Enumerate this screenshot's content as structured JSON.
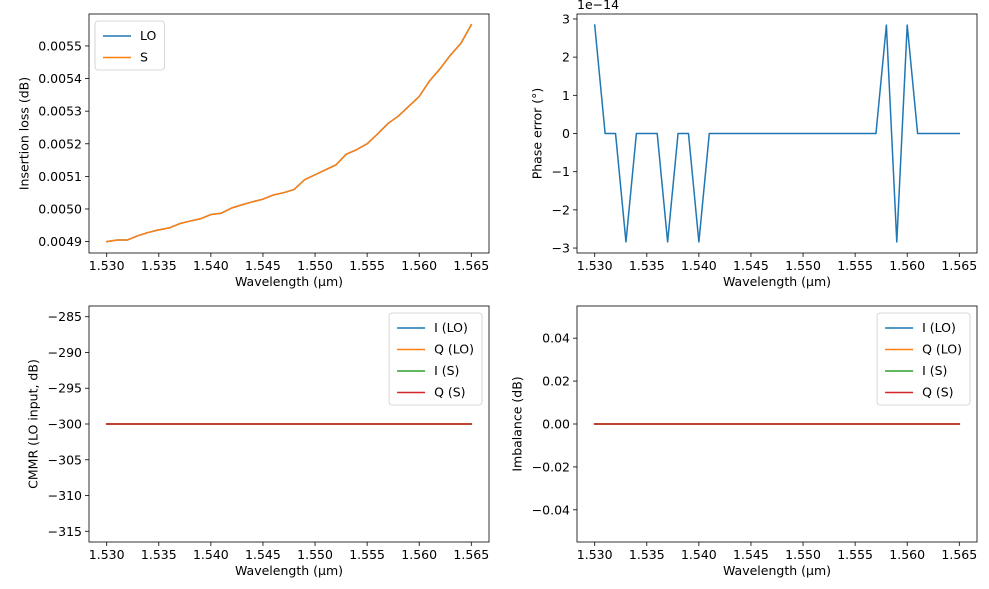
{
  "chart_data": [
    {
      "type": "line",
      "xlabel": "Wavelength (µm)",
      "ylabel": "Insertion loss (dB)",
      "xlim": [
        1.5283,
        1.5667
      ],
      "ylim": [
        0.004865,
        0.005598
      ],
      "xticks": [
        1.53,
        1.535,
        1.54,
        1.545,
        1.55,
        1.555,
        1.56,
        1.565
      ],
      "xtick_labels": [
        "1.530",
        "1.535",
        "1.540",
        "1.545",
        "1.550",
        "1.555",
        "1.560",
        "1.565"
      ],
      "yticks": [
        0.0049,
        0.005,
        0.0051,
        0.0052,
        0.0053,
        0.0054,
        0.0055
      ],
      "ytick_labels": [
        "0.0049",
        "0.0050",
        "0.0051",
        "0.0052",
        "0.0053",
        "0.0054",
        "0.0055"
      ],
      "offset_text": "",
      "legend": {
        "placement": "upper-left"
      },
      "x": [
        1.53,
        1.531,
        1.532,
        1.533,
        1.534,
        1.535,
        1.536,
        1.537,
        1.538,
        1.539,
        1.54,
        1.541,
        1.542,
        1.543,
        1.544,
        1.545,
        1.546,
        1.547,
        1.548,
        1.549,
        1.55,
        1.551,
        1.552,
        1.553,
        1.554,
        1.555,
        1.556,
        1.557,
        1.558,
        1.559,
        1.56,
        1.561,
        1.562,
        1.563,
        1.564,
        1.565
      ],
      "series": [
        {
          "name": "LO",
          "color": "#1f77b4",
          "values": [
            0.0049,
            0.004905,
            0.004905,
            0.004918,
            0.004928,
            0.004936,
            0.004942,
            0.004955,
            0.004963,
            0.00497,
            0.004983,
            0.004987,
            0.005003,
            0.005013,
            0.005022,
            0.00503,
            0.005043,
            0.00505,
            0.00506,
            0.00509,
            0.005105,
            0.00512,
            0.005135,
            0.005168,
            0.005182,
            0.0052,
            0.00523,
            0.005262,
            0.005285,
            0.005315,
            0.005345,
            0.005393,
            0.00543,
            0.005472,
            0.005508,
            0.005565
          ]
        },
        {
          "name": "S",
          "color": "#ff7f0e",
          "values": [
            0.0049,
            0.004905,
            0.004905,
            0.004918,
            0.004928,
            0.004936,
            0.004942,
            0.004955,
            0.004963,
            0.00497,
            0.004983,
            0.004987,
            0.005003,
            0.005013,
            0.005022,
            0.00503,
            0.005043,
            0.00505,
            0.00506,
            0.00509,
            0.005105,
            0.00512,
            0.005135,
            0.005168,
            0.005182,
            0.0052,
            0.00523,
            0.005262,
            0.005285,
            0.005315,
            0.005345,
            0.005393,
            0.00543,
            0.005472,
            0.005508,
            0.005565
          ]
        }
      ]
    },
    {
      "type": "line",
      "xlabel": "Wavelength (µm)",
      "ylabel": "Phase error (°)",
      "xlim": [
        1.5283,
        1.5667
      ],
      "ylim": [
        -3.13e-14,
        3.13e-14
      ],
      "xticks": [
        1.53,
        1.535,
        1.54,
        1.545,
        1.55,
        1.555,
        1.56,
        1.565
      ],
      "xtick_labels": [
        "1.530",
        "1.535",
        "1.540",
        "1.545",
        "1.550",
        "1.555",
        "1.560",
        "1.565"
      ],
      "yticks": [
        -3e-14,
        -2e-14,
        -1e-14,
        0,
        1e-14,
        2e-14,
        3e-14
      ],
      "ytick_labels": [
        "−3",
        "−2",
        "−1",
        "0",
        "1",
        "2",
        "3"
      ],
      "offset_text": "1e−14",
      "legend": null,
      "x": [
        1.53,
        1.531,
        1.532,
        1.533,
        1.534,
        1.535,
        1.536,
        1.537,
        1.538,
        1.539,
        1.54,
        1.541,
        1.542,
        1.543,
        1.544,
        1.545,
        1.546,
        1.547,
        1.548,
        1.549,
        1.55,
        1.551,
        1.552,
        1.553,
        1.554,
        1.555,
        1.556,
        1.557,
        1.558,
        1.559,
        1.56,
        1.561,
        1.562,
        1.563,
        1.564,
        1.565
      ],
      "series": [
        {
          "name": "",
          "color": "#1f77b4",
          "values": [
            2.84e-14,
            0,
            0,
            -2.84e-14,
            0,
            0,
            0,
            -2.84e-14,
            0,
            0,
            -2.84e-14,
            0,
            0,
            0,
            0,
            0,
            0,
            0,
            0,
            0,
            0,
            0,
            0,
            0,
            0,
            0,
            0,
            0,
            2.84e-14,
            -2.84e-14,
            2.84e-14,
            0,
            0,
            0,
            0,
            0
          ]
        }
      ]
    },
    {
      "type": "line",
      "xlabel": "Wavelength (µm)",
      "ylabel": "CMMR (LO input, dB)",
      "xlim": [
        1.5283,
        1.5667
      ],
      "ylim": [
        -316.5,
        -283.5
      ],
      "xticks": [
        1.53,
        1.535,
        1.54,
        1.545,
        1.55,
        1.555,
        1.56,
        1.565
      ],
      "xtick_labels": [
        "1.530",
        "1.535",
        "1.540",
        "1.545",
        "1.550",
        "1.555",
        "1.560",
        "1.565"
      ],
      "yticks": [
        -315,
        -310,
        -305,
        -300,
        -295,
        -290,
        -285
      ],
      "ytick_labels": [
        "−315",
        "−310",
        "−305",
        "−300",
        "−295",
        "−290",
        "−285"
      ],
      "offset_text": "",
      "legend": {
        "placement": "upper-right"
      },
      "x": [
        1.53,
        1.565
      ],
      "series": [
        {
          "name": "I (LO)",
          "color": "#1f77b4",
          "values": [
            -300,
            -300
          ]
        },
        {
          "name": "Q (LO)",
          "color": "#ff7f0e",
          "values": [
            -300,
            -300
          ]
        },
        {
          "name": "I (S)",
          "color": "#2ca02c",
          "values": [
            -300,
            -300
          ]
        },
        {
          "name": "Q (S)",
          "color": "#d62728",
          "values": [
            -300,
            -300
          ]
        }
      ]
    },
    {
      "type": "line",
      "xlabel": "Wavelength (µm)",
      "ylabel": "Imbalance (dB)",
      "xlim": [
        1.5283,
        1.5667
      ],
      "ylim": [
        -0.055,
        0.055
      ],
      "xticks": [
        1.53,
        1.535,
        1.54,
        1.545,
        1.55,
        1.555,
        1.56,
        1.565
      ],
      "xtick_labels": [
        "1.530",
        "1.535",
        "1.540",
        "1.545",
        "1.550",
        "1.555",
        "1.560",
        "1.565"
      ],
      "yticks": [
        -0.04,
        -0.02,
        0.0,
        0.02,
        0.04
      ],
      "ytick_labels": [
        "−0.04",
        "−0.02",
        "0.00",
        "0.02",
        "0.04"
      ],
      "offset_text": "",
      "legend": {
        "placement": "upper-right"
      },
      "x": [
        1.53,
        1.565
      ],
      "series": [
        {
          "name": "I (LO)",
          "color": "#1f77b4",
          "values": [
            0,
            0
          ]
        },
        {
          "name": "Q (LO)",
          "color": "#ff7f0e",
          "values": [
            0,
            0
          ]
        },
        {
          "name": "I (S)",
          "color": "#2ca02c",
          "values": [
            0,
            0
          ]
        },
        {
          "name": "Q (S)",
          "color": "#d62728",
          "values": [
            0,
            0
          ]
        }
      ]
    }
  ]
}
